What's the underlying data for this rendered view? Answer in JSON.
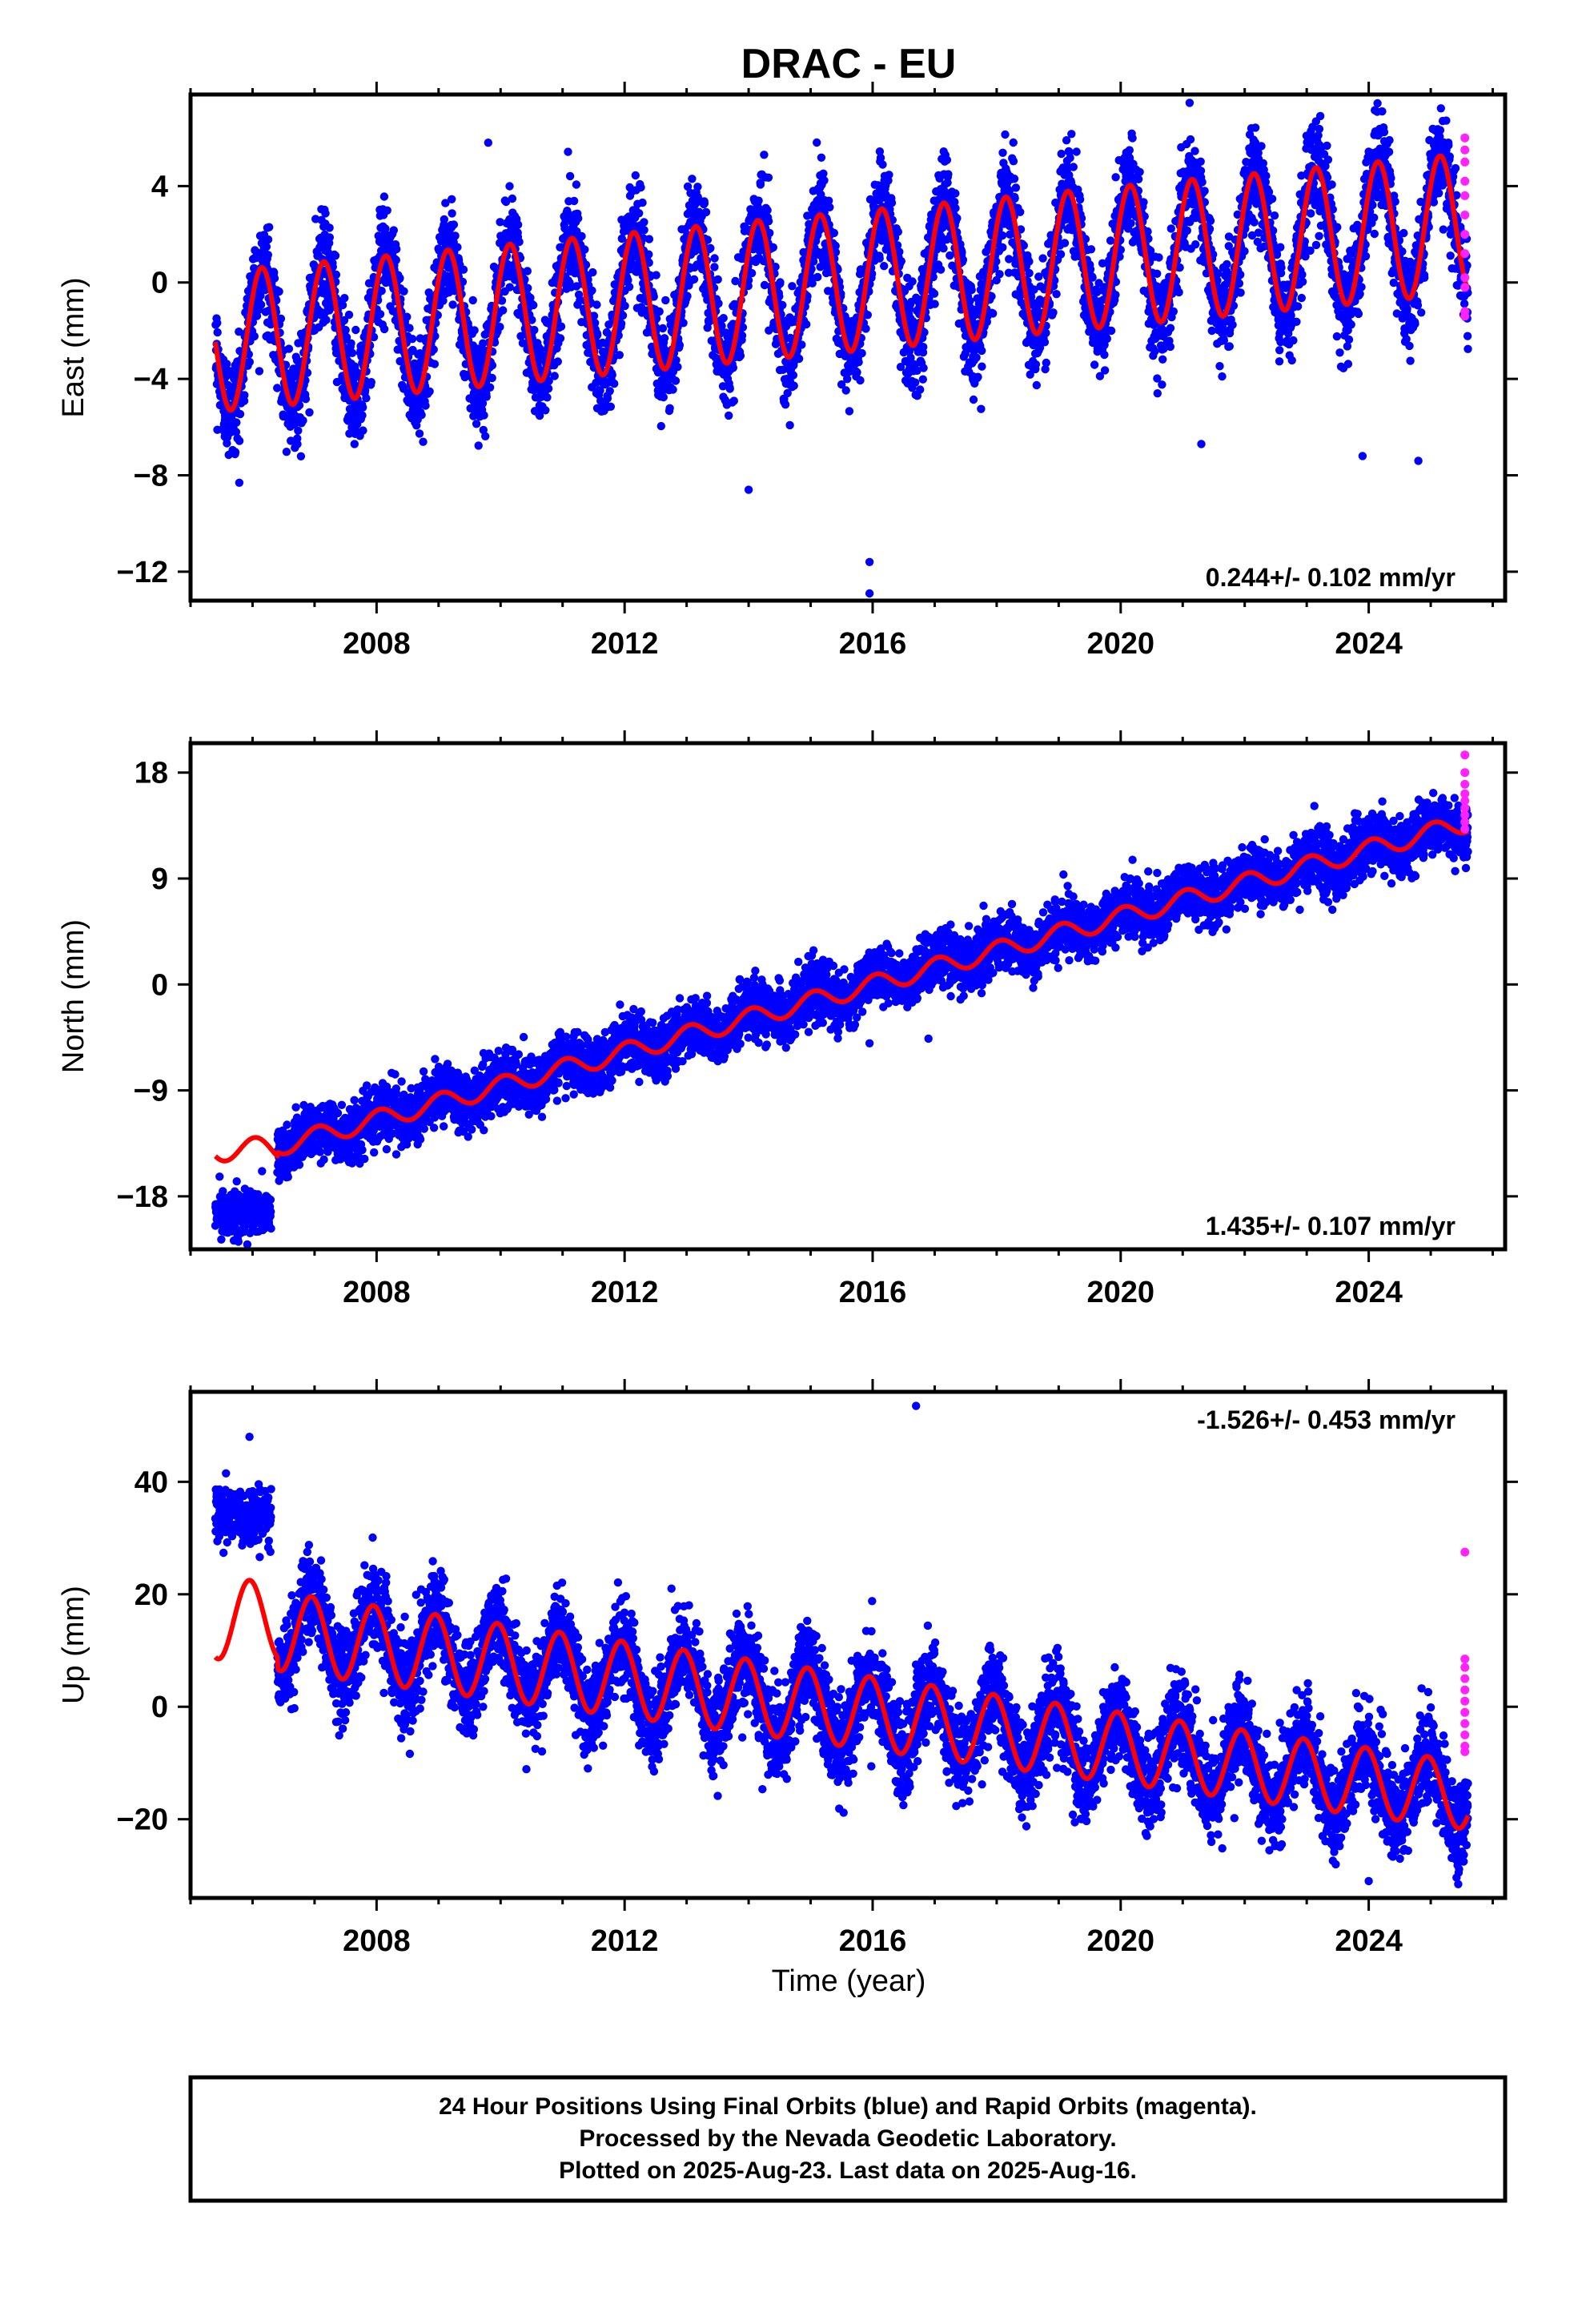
{
  "figure": {
    "title": "DRAC - EU",
    "x_axis_label": "Time (year)",
    "footer_lines": [
      "24 Hour Positions Using Final Orbits (blue) and Rapid Orbits (magenta).",
      "Processed by the Nevada Geodetic Laboratory.",
      "Plotted on 2025-Aug-23. Last data on 2025-Aug-16."
    ],
    "colors": {
      "final_orbits": "#0000ff",
      "rapid_orbits": "#ff22ff",
      "model_fit": "#ff0000",
      "frame": "#000000"
    }
  },
  "chart_data": [
    {
      "type": "scatter",
      "ylabel": "East (mm)",
      "rate_label": "0.244+/- 0.102 mm/yr",
      "rate_position": "bottom-right",
      "xlim": [
        2005.0,
        2026.2
      ],
      "ylim": [
        -13.2,
        7.8
      ],
      "x_ticks": [
        "2008",
        "2012",
        "2016",
        "2020",
        "2024"
      ],
      "y_ticks": [
        "4",
        "0",
        "−4",
        "−8",
        "−12"
      ],
      "y_tick_values": [
        4,
        0,
        -4,
        -8,
        -12
      ],
      "model": {
        "data_start": 2005.4,
        "data_end": 2025.6,
        "ref": 2015.5,
        "offset": 0.0,
        "trend": 0.244,
        "seasonal_amp_start": 2.9,
        "seasonal_amp_end": 2.9,
        "phase": 0.1,
        "noise": 1.0
      },
      "rapid_points": [
        6.0,
        5.5,
        5.0,
        4.2,
        3.6,
        2.8,
        2.0,
        1.2,
        0.2,
        -0.2,
        -1.2,
        -1.4
      ],
      "outliers": [
        [
          2015.95,
          -11.6
        ],
        [
          2015.95,
          -12.9
        ],
        [
          2014.0,
          -8.6
        ],
        [
          2021.3,
          -6.7
        ],
        [
          2023.9,
          -7.2
        ],
        [
          2024.8,
          -7.4
        ],
        [
          2009.8,
          5.8
        ]
      ]
    },
    {
      "type": "scatter",
      "ylabel": "North (mm)",
      "rate_label": "1.435+/- 0.107 mm/yr",
      "rate_position": "bottom-right",
      "xlim": [
        2005.0,
        2026.2
      ],
      "ylim": [
        -22.5,
        20.5
      ],
      "x_ticks": [
        "2008",
        "2012",
        "2016",
        "2020",
        "2024"
      ],
      "y_ticks": [
        "18",
        "9",
        "0",
        "−9",
        "−18"
      ],
      "y_tick_values": [
        18,
        9,
        0,
        -9,
        -18
      ],
      "model": {
        "data_start": 2006.4,
        "data_end": 2025.6,
        "ref": 2016.0,
        "offset": 0.0,
        "trend": 1.435,
        "seasonal_amp_start": 0.8,
        "seasonal_amp_end": 0.8,
        "phase": 0.2,
        "noise": 1.2
      },
      "early_segment": {
        "start": 2005.4,
        "end": 2006.3,
        "value": -19.5,
        "spread": 1.8
      },
      "model_start": 2005.4,
      "rapid_points": [
        19.5,
        18.0,
        17.0,
        16.2,
        15.6,
        15.0,
        14.4,
        13.8,
        13.2
      ],
      "outliers": [
        [
          2015.95,
          -5.0
        ],
        [
          2007.1,
          -15.2
        ],
        [
          2016.9,
          -4.6
        ]
      ]
    },
    {
      "type": "scatter",
      "ylabel": "Up (mm)",
      "rate_label": "-1.526+/- 0.453 mm/yr",
      "rate_position": "top-right",
      "xlim": [
        2005.0,
        2026.2
      ],
      "ylim": [
        -34.0,
        56.0
      ],
      "x_ticks": [
        "2008",
        "2012",
        "2016",
        "2020",
        "2024"
      ],
      "y_ticks": [
        "40",
        "20",
        "0",
        "−20"
      ],
      "y_tick_values": [
        40,
        20,
        0,
        -20
      ],
      "model": {
        "data_start": 2006.4,
        "data_end": 2025.6,
        "ref": 2016.0,
        "offset": -1.2,
        "trend": -1.526,
        "seasonal_amp_start": 7.0,
        "seasonal_amp_end": 6.0,
        "phase": 0.3,
        "noise": 4.0
      },
      "early_segment": {
        "start": 2005.4,
        "end": 2006.3,
        "value": 34.0,
        "spread": 5.0
      },
      "model_start": 2005.4,
      "rapid_points": [
        27.5,
        8.5,
        7.0,
        5.0,
        3.0,
        1.0,
        -1.0,
        -3.0,
        -5.0,
        -7.0,
        -8.0
      ],
      "outliers": [
        [
          2016.7,
          53.5
        ],
        [
          2005.95,
          48.0
        ],
        [
          2024.0,
          -31.0
        ]
      ]
    }
  ]
}
